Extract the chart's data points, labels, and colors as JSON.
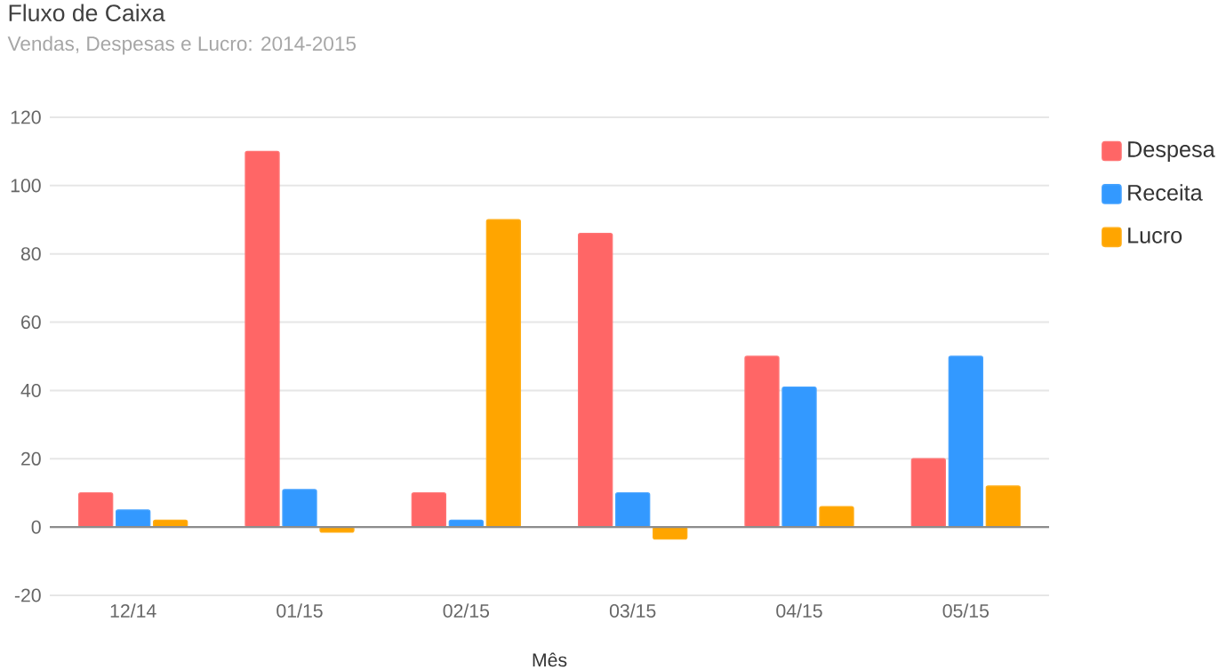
{
  "chart_data": {
    "type": "bar",
    "title": "Fluxo de Caixa",
    "subtitle": "Vendas, Despesas e Lucro: 2014-2015",
    "xlabel": "Mês",
    "categories": [
      "12/14",
      "01/15",
      "02/15",
      "03/15",
      "04/15",
      "05/15"
    ],
    "series": [
      {
        "name": "Despesa",
        "color": "#ff6666",
        "values": [
          10,
          110,
          10,
          86,
          50,
          20
        ]
      },
      {
        "name": "Receita",
        "color": "#3399ff",
        "values": [
          5,
          11,
          2,
          10,
          41,
          50
        ]
      },
      {
        "name": "Lucro",
        "color": "#ffa500",
        "values": [
          2,
          -1.5,
          90,
          -3.5,
          6,
          12
        ]
      }
    ],
    "ylim": [
      -20,
      120
    ],
    "yticks": [
      -20,
      0,
      20,
      40,
      60,
      80,
      100,
      120
    ],
    "grid": "y",
    "legend": "right"
  }
}
